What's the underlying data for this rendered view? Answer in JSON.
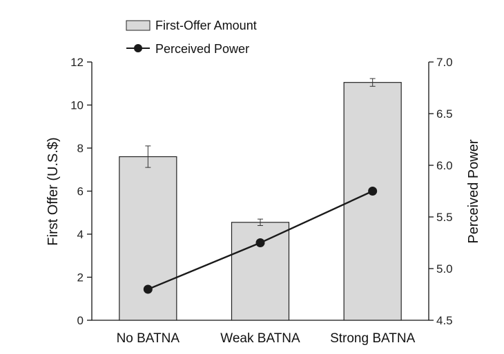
{
  "chart_data": {
    "type": "bar",
    "categories": [
      "No BATNA",
      "Weak BATNA",
      "Strong BATNA"
    ],
    "series": [
      {
        "name": "First-Offer Amount",
        "kind": "bar",
        "axis": "left",
        "values": [
          7.6,
          4.55,
          11.05
        ],
        "error": [
          0.5,
          0.15,
          0.18
        ]
      },
      {
        "name": "Perceived Power",
        "kind": "line",
        "axis": "right",
        "values": [
          4.8,
          5.25,
          5.75
        ]
      }
    ],
    "ylabel": "First Offer (U.S.$)",
    "ylim": [
      0,
      12
    ],
    "yticks": [
      "0",
      "2",
      "4",
      "6",
      "8",
      "10",
      "12"
    ],
    "y2label": "Perceived Power",
    "y2lim": [
      4.5,
      7.0
    ],
    "y2ticks": [
      "4.5",
      "5.0",
      "5.5",
      "6.0",
      "6.5",
      "7.0"
    ],
    "legend": "top-left",
    "grid": false,
    "colors": {
      "bar_fill": "#d9d9d9",
      "bar_stroke": "#222222",
      "line": "#1a1a1a"
    }
  }
}
